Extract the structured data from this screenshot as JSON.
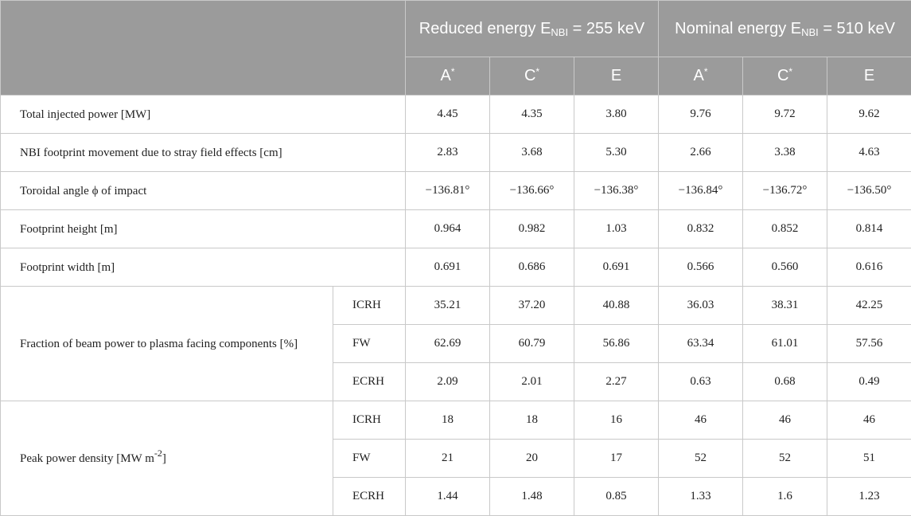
{
  "header": {
    "group1": {
      "prefix": "Reduced energy E",
      "sub": "NBI",
      "suffix": " = 255 keV"
    },
    "group2": {
      "prefix": "Nominal energy E",
      "sub": "NBI",
      "suffix": " = 510 keV"
    },
    "columns": [
      "A",
      "C",
      "E",
      "A",
      "C",
      "E"
    ],
    "star": "*"
  },
  "rows": {
    "power": {
      "label": "Total injected power [MW]",
      "values": [
        "4.45",
        "4.35",
        "3.80",
        "9.76",
        "9.72",
        "9.62"
      ]
    },
    "movement": {
      "label": "NBI footprint movement due to stray field effects [cm]",
      "values": [
        "2.83",
        "3.68",
        "5.30",
        "2.66",
        "3.38",
        "4.63"
      ]
    },
    "angle": {
      "label": "Toroidal angle ϕ of impact",
      "values": [
        "−136.81°",
        "−136.66°",
        "−136.38°",
        "−136.84°",
        "−136.72°",
        "−136.50°"
      ]
    },
    "height": {
      "label": "Footprint height [m]",
      "values": [
        "0.964",
        "0.982",
        "1.03",
        "0.832",
        "0.852",
        "0.814"
      ]
    },
    "width": {
      "label": "Footprint width [m]",
      "values": [
        "0.691",
        "0.686",
        "0.691",
        "0.566",
        "0.560",
        "0.616"
      ]
    }
  },
  "fraction": {
    "label": "Fraction of beam power to plasma facing components [%]",
    "subrows": [
      {
        "name": "ICRH",
        "values": [
          "35.21",
          "37.20",
          "40.88",
          "36.03",
          "38.31",
          "42.25"
        ]
      },
      {
        "name": "FW",
        "values": [
          "62.69",
          "60.79",
          "56.86",
          "63.34",
          "61.01",
          "57.56"
        ]
      },
      {
        "name": "ECRH",
        "values": [
          "2.09",
          "2.01",
          "2.27",
          "0.63",
          "0.68",
          "0.49"
        ]
      }
    ]
  },
  "peak": {
    "label_prefix": "Peak power density [MW m",
    "label_sup": "-2",
    "label_suffix": "]",
    "subrows": [
      {
        "name": "ICRH",
        "values": [
          "18",
          "18",
          "16",
          "46",
          "46",
          "46"
        ]
      },
      {
        "name": "FW",
        "values": [
          "21",
          "20",
          "17",
          "52",
          "52",
          "51"
        ]
      },
      {
        "name": "ECRH",
        "values": [
          "1.44",
          "1.48",
          "0.85",
          "1.33",
          "1.6",
          "1.23"
        ]
      }
    ]
  }
}
